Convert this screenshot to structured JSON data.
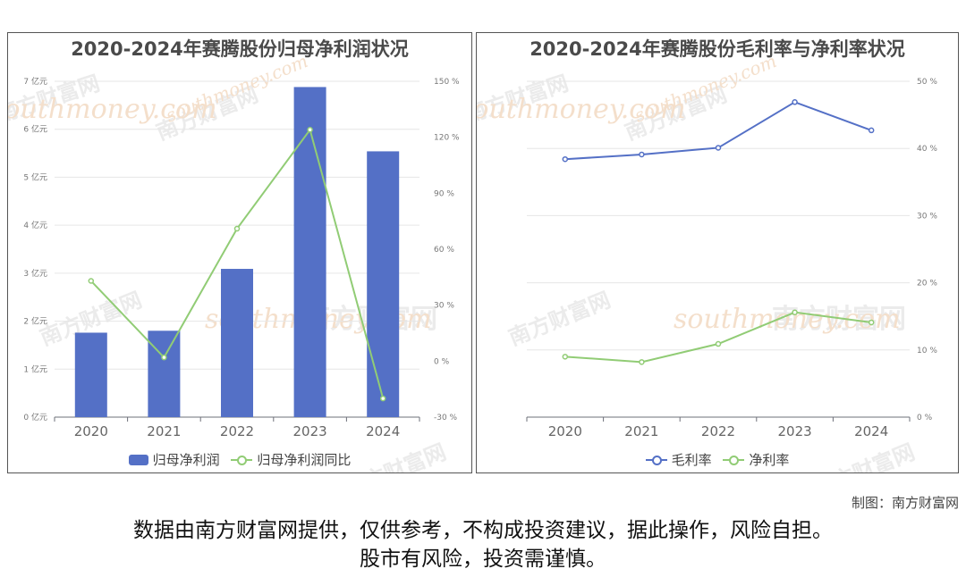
{
  "left_panel": {
    "title": "2020-2024年赛腾股份归母净利润状况",
    "legend": {
      "bar": "归母净利润",
      "line": "归母净利润同比"
    }
  },
  "right_panel": {
    "title": "2020-2024年赛腾股份毛利率与净利率状况",
    "legend": {
      "gross": "毛利率",
      "net": "净利率"
    }
  },
  "watermark": {
    "cn": "南方财富网",
    "en": "southmoney.com"
  },
  "credit": "制图：南方财富网",
  "disclaimer": {
    "line1": "数据由南方财富网提供，仅供参考，不构成投资建议，据此操作，风险自担。",
    "line2": "股市有风险，投资需谨慎。"
  },
  "colors": {
    "bar": "#5470c6",
    "green": "#91cc75",
    "blue": "#5470c6"
  },
  "chart_data": [
    {
      "type": "bar",
      "title": "2020-2024年赛腾股份归母净利润状况",
      "categories": [
        "2020",
        "2021",
        "2022",
        "2023",
        "2024"
      ],
      "series": [
        {
          "name": "归母净利润",
          "type": "bar",
          "axis": "left",
          "values": [
            1.76,
            1.8,
            3.09,
            6.88,
            5.54
          ]
        },
        {
          "name": "归母净利润同比",
          "type": "line",
          "axis": "right",
          "values": [
            43,
            2,
            71,
            124,
            -20
          ]
        }
      ],
      "y_left": {
        "ticks": [
          "0 亿元",
          "1 亿元",
          "2 亿元",
          "3 亿元",
          "4 亿元",
          "5 亿元",
          "6 亿元",
          "7 亿元"
        ],
        "ylim": [
          0,
          7
        ]
      },
      "y_right": {
        "ticks": [
          "-30 %",
          "0 %",
          "30 %",
          "60 %",
          "90 %",
          "120 %",
          "150 %"
        ],
        "ylim": [
          -30,
          150
        ]
      },
      "grid": true,
      "legend_position": "bottom"
    },
    {
      "type": "line",
      "title": "2020-2024年赛腾股份毛利率与净利率状况",
      "categories": [
        "2020",
        "2021",
        "2022",
        "2023",
        "2024"
      ],
      "series": [
        {
          "name": "毛利率",
          "values": [
            38.4,
            39.1,
            40.1,
            46.9,
            42.7
          ]
        },
        {
          "name": "净利率",
          "values": [
            9.0,
            8.2,
            10.9,
            15.6,
            14.1
          ]
        }
      ],
      "y_right": {
        "ticks": [
          "0 %",
          "10 %",
          "20 %",
          "30 %",
          "40 %",
          "50 %"
        ],
        "ylim": [
          0,
          50
        ]
      },
      "grid": true,
      "legend_position": "bottom"
    }
  ]
}
